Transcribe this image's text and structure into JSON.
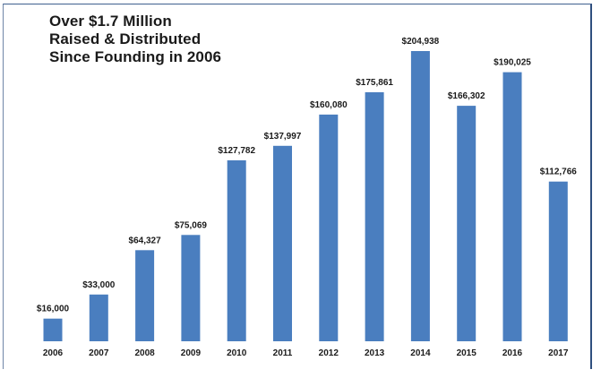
{
  "chart_data": {
    "type": "bar",
    "title_lines": [
      "Over $1.7 Million",
      "Raised & Distributed",
      "Since Founding in 2006"
    ],
    "xlabel": "",
    "ylabel": "",
    "categories": [
      "2006",
      "2007",
      "2008",
      "2009",
      "2010",
      "2011",
      "2012",
      "2013",
      "2014",
      "2015",
      "2016",
      "2017"
    ],
    "values": [
      16000,
      33000,
      64327,
      75069,
      127782,
      137997,
      160080,
      175861,
      204938,
      166302,
      190025,
      112766
    ],
    "data_labels": [
      "$16,000",
      "$33,000",
      "$64,327",
      "$75,069",
      "$127,782",
      "$137,997",
      "$160,080",
      "$175,861",
      "$204,938",
      "$166,302",
      "$190,025",
      "$112,766"
    ],
    "ylim": [
      0,
      204938
    ],
    "grid": false,
    "legend": "none",
    "bar_color": "#4a7ebf"
  }
}
